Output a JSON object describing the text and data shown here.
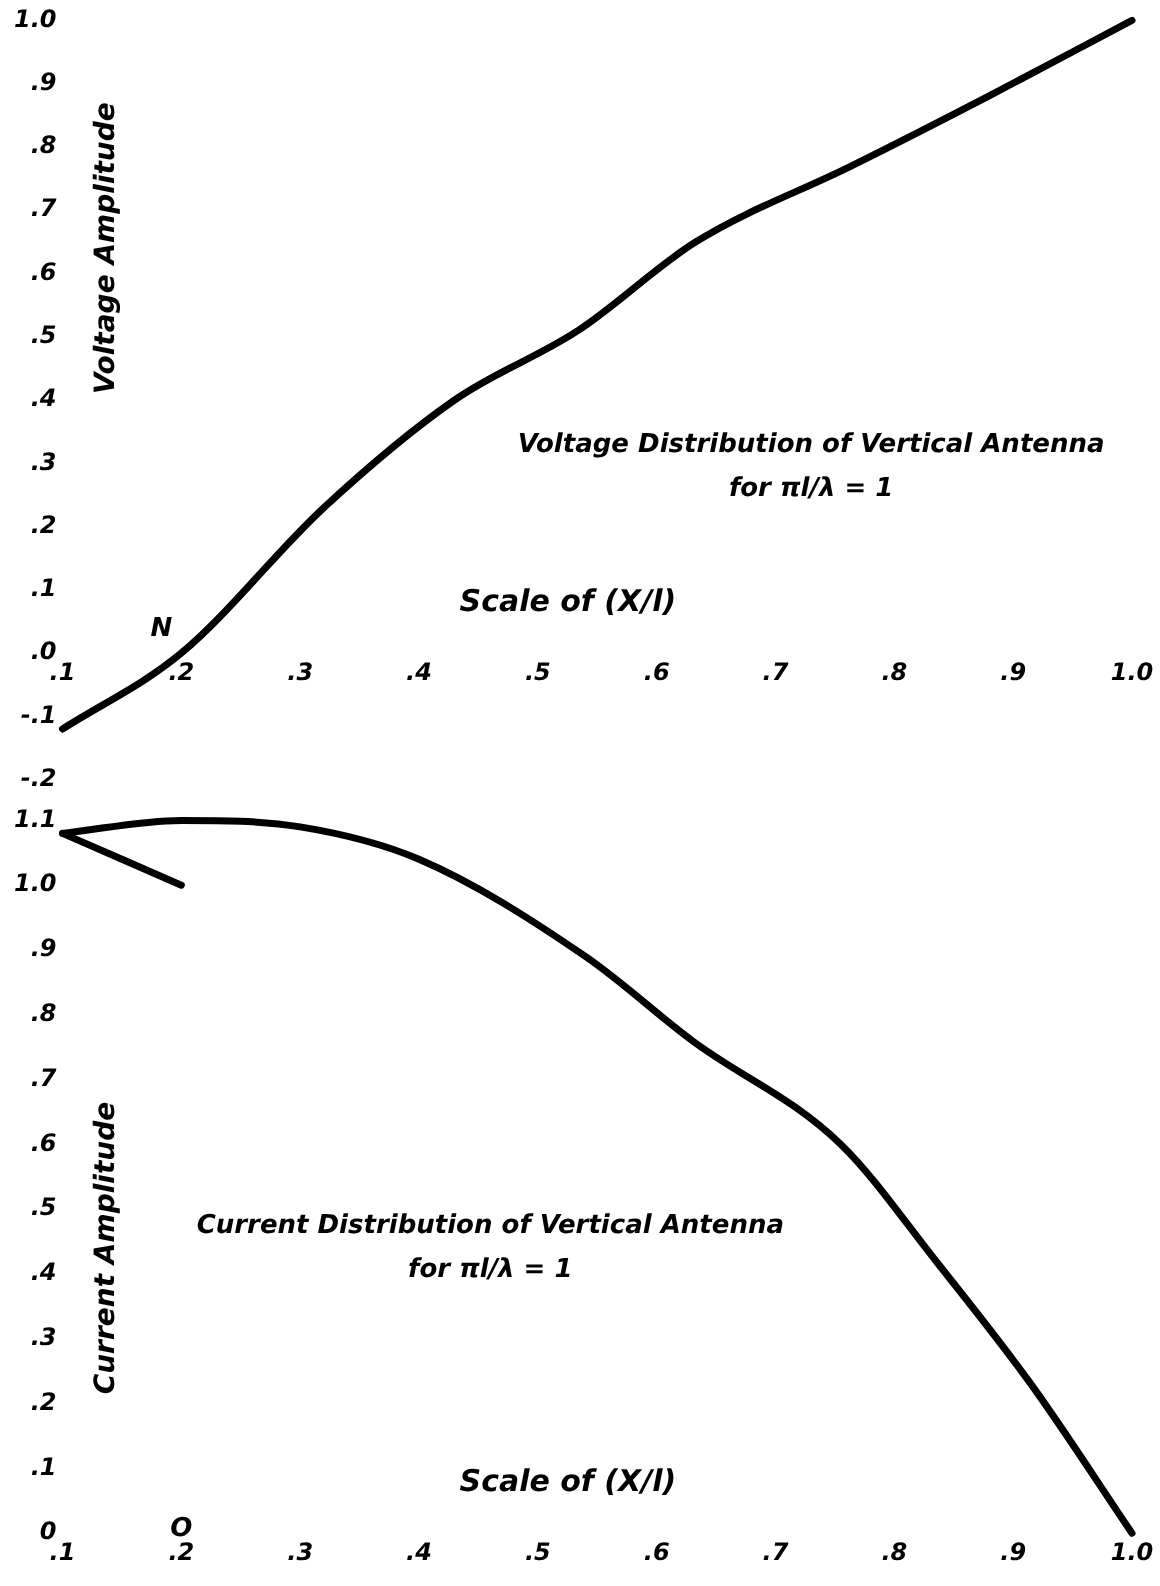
{
  "chart_data": [
    {
      "type": "line",
      "title": "Voltage Distribution of Vertical Antenna",
      "subtitle": "for πl/λ = 1",
      "xlabel": "Scale of (X/l)",
      "ylabel": "Voltage Amplitude",
      "series": [
        {
          "color": "#000000",
          "x": [
            0.1,
            0.2,
            0.32,
            0.43,
            0.534,
            0.633,
            0.764,
            0.879,
            1.0
          ],
          "values": [
            -0.12,
            0.0,
            0.23,
            0.4,
            0.51,
            0.65,
            0.77,
            0.88,
            1.0
          ]
        }
      ],
      "xlim": [
        0.1,
        1.0
      ],
      "ylim": [
        -0.2,
        1.0
      ],
      "xticks": [
        {
          "value": 0.1,
          "label": ".1"
        },
        {
          "value": 0.2,
          "label": ".2"
        },
        {
          "value": 0.3,
          "label": ".3"
        },
        {
          "value": 0.4,
          "label": ".4"
        },
        {
          "value": 0.5,
          "label": ".5"
        },
        {
          "value": 0.6,
          "label": ".6"
        },
        {
          "value": 0.7,
          "label": ".7"
        },
        {
          "value": 0.8,
          "label": ".8"
        },
        {
          "value": 0.9,
          "label": ".9"
        },
        {
          "value": 1.0,
          "label": "1.0"
        }
      ],
      "yticks": [
        {
          "value": 1.0,
          "label": "1.0"
        },
        {
          "value": 0.9,
          "label": ".9"
        },
        {
          "value": 0.8,
          "label": ".8"
        },
        {
          "value": 0.7,
          "label": ".7"
        },
        {
          "value": 0.6,
          "label": ".6"
        },
        {
          "value": 0.5,
          "label": ".5"
        },
        {
          "value": 0.4,
          "label": ".4"
        },
        {
          "value": 0.3,
          "label": ".3"
        },
        {
          "value": 0.2,
          "label": ".2"
        },
        {
          "value": 0.1,
          "label": ".1"
        },
        {
          "value": 0,
          "label": ".0"
        },
        {
          "value": -0.1,
          "label": "-.1"
        },
        {
          "value": -0.2,
          "label": "-.2"
        }
      ],
      "annotations": [
        {
          "text": "N",
          "x": 0.2,
          "y": 0.0
        }
      ],
      "grid": false,
      "legend": false,
      "marker": "none",
      "line_style": "solid"
    },
    {
      "type": "line",
      "title": "Current Distribution of Vertical Antenna",
      "subtitle": "for πl/λ = 1",
      "xlabel": "Scale of (X/l)",
      "ylabel": "Current Amplitude",
      "series": [
        {
          "color": "#000000",
          "x": [
            0.1,
            0.2,
            0.3,
            0.4,
            0.54,
            0.63,
            0.755,
            0.835,
            0.915,
            1.0
          ],
          "values": [
            1.08,
            1.1,
            1.09,
            1.04,
            0.89,
            0.76,
            0.6,
            0.42,
            0.23,
            0.0
          ]
        },
        {
          "color": "#000000",
          "x": [
            0.1,
            0.2
          ],
          "values": [
            1.08,
            1.0
          ]
        }
      ],
      "xlim": [
        0.1,
        1.0
      ],
      "ylim": [
        0,
        1.1
      ],
      "xticks": [
        {
          "value": 0.1,
          "label": ".1"
        },
        {
          "value": 0.2,
          "label": ".2"
        },
        {
          "value": 0.3,
          "label": ".3"
        },
        {
          "value": 0.4,
          "label": ".4"
        },
        {
          "value": 0.5,
          "label": ".5"
        },
        {
          "value": 0.6,
          "label": ".6"
        },
        {
          "value": 0.7,
          "label": ".7"
        },
        {
          "value": 0.8,
          "label": ".8"
        },
        {
          "value": 0.9,
          "label": ".9"
        },
        {
          "value": 1.0,
          "label": "1.0"
        }
      ],
      "yticks": [
        {
          "value": 1.1,
          "label": "1.1"
        },
        {
          "value": 1.0,
          "label": "1.0"
        },
        {
          "value": 0.9,
          "label": ".9"
        },
        {
          "value": 0.8,
          "label": ".8"
        },
        {
          "value": 0.7,
          "label": ".7"
        },
        {
          "value": 0.6,
          "label": ".6"
        },
        {
          "value": 0.5,
          "label": ".5"
        },
        {
          "value": 0.4,
          "label": ".4"
        },
        {
          "value": 0.3,
          "label": ".3"
        },
        {
          "value": 0.2,
          "label": ".2"
        },
        {
          "value": 0.1,
          "label": ".1"
        },
        {
          "value": 0,
          "label": "0"
        }
      ],
      "annotations": [
        "O"
      ],
      "grid": false,
      "legend": false,
      "marker": "none",
      "line_style": "solid"
    }
  ]
}
